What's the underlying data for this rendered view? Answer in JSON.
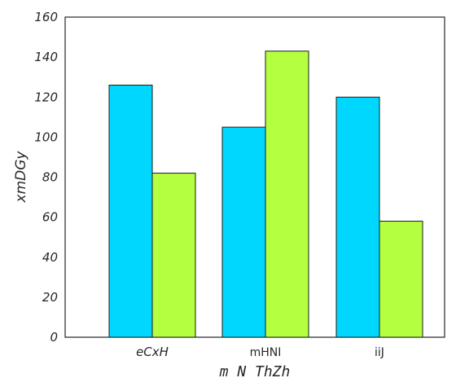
{
  "chart_data": {
    "type": "bar",
    "categories": [
      "eCxH",
      "mHNI",
      "iiJ"
    ],
    "series": [
      {
        "color": "#00d7ff",
        "values": [
          126,
          105,
          120
        ]
      },
      {
        "color": "#b3ff40",
        "values": [
          82,
          143,
          58
        ]
      }
    ],
    "xlabel": "m N ThZh",
    "ylabel": "xmDGy",
    "ylim": [
      0,
      160
    ],
    "yticks": [
      0,
      20,
      40,
      60,
      80,
      100,
      120,
      140,
      160
    ],
    "grid": false,
    "legend": "none"
  }
}
